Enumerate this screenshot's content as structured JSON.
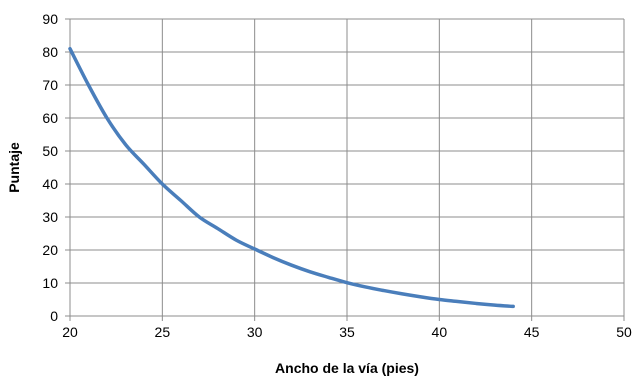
{
  "chart_data": {
    "type": "line",
    "title": "",
    "xlabel": "Ancho de la vía (pies)",
    "ylabel": "Puntaje",
    "xlim": [
      20,
      50
    ],
    "ylim": [
      0,
      90
    ],
    "x_ticks": [
      20,
      25,
      30,
      35,
      40,
      45,
      50
    ],
    "y_ticks": [
      0,
      10,
      20,
      30,
      40,
      50,
      60,
      70,
      80,
      90
    ],
    "grid": true,
    "legend": "none",
    "series": [
      {
        "color": "#4a7ebb",
        "x": [
          20,
          21,
          22,
          23,
          24,
          25,
          26,
          27,
          28,
          29,
          30,
          31,
          32,
          33,
          34,
          35,
          36,
          37,
          38,
          39,
          40,
          41,
          42,
          43,
          44
        ],
        "y": [
          81,
          70,
          60,
          52,
          46,
          40,
          35,
          30,
          26.5,
          23,
          20.3,
          17.7,
          15.4,
          13.4,
          11.7,
          10.1,
          8.8,
          7.7,
          6.7,
          5.8,
          5.0,
          4.4,
          3.8,
          3.3,
          2.9
        ]
      }
    ]
  }
}
